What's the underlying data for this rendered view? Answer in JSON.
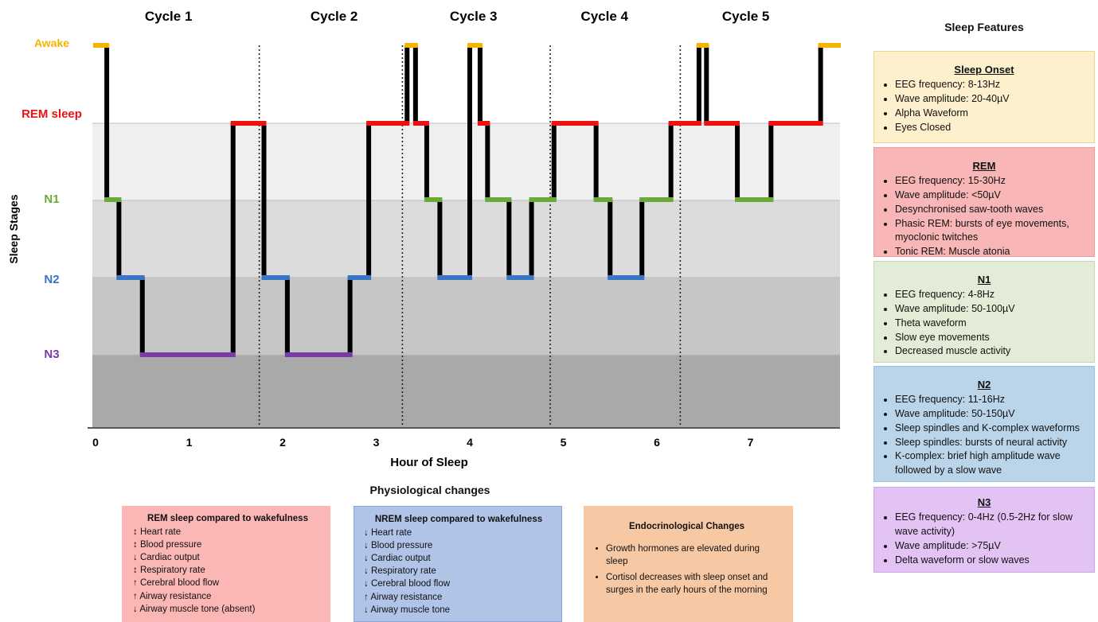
{
  "chart_data": {
    "type": "line",
    "subtype": "hypnogram",
    "xlabel": "Hour of Sleep",
    "ylabel": "Sleep Stages",
    "x_ticks": [
      "0",
      "1",
      "2",
      "3",
      "4",
      "5",
      "6",
      "7"
    ],
    "xlim": [
      0,
      7.8
    ],
    "stages": [
      {
        "name": "Awake",
        "color": "#f6b400"
      },
      {
        "name": "REM sleep",
        "color": "#ee1111"
      },
      {
        "name": "N1",
        "color": "#6aaa3a"
      },
      {
        "name": "N2",
        "color": "#3a74c4"
      },
      {
        "name": "N3",
        "color": "#7a3aa8"
      }
    ],
    "cycles": [
      {
        "label": "Cycle 1",
        "center": 0.78
      },
      {
        "label": "Cycle 2",
        "center": 2.55
      },
      {
        "label": "Cycle 3",
        "center": 4.04
      },
      {
        "label": "Cycle 4",
        "center": 5.44
      },
      {
        "label": "Cycle 5",
        "center": 6.95
      }
    ],
    "cycle_boundaries": [
      1.75,
      3.28,
      4.86,
      6.25
    ],
    "segments": [
      {
        "stage": "Awake",
        "x0": 0.0,
        "x1": 0.12
      },
      {
        "stage": "N1",
        "x0": 0.12,
        "x1": 0.25
      },
      {
        "stage": "N2",
        "x0": 0.25,
        "x1": 0.5
      },
      {
        "stage": "N3",
        "x0": 0.5,
        "x1": 1.47
      },
      {
        "stage": "REM sleep",
        "x0": 1.47,
        "x1": 1.8
      },
      {
        "stage": "N2",
        "x0": 1.8,
        "x1": 2.05
      },
      {
        "stage": "N3",
        "x0": 2.05,
        "x1": 2.72
      },
      {
        "stage": "N2",
        "x0": 2.72,
        "x1": 2.92
      },
      {
        "stage": "REM sleep",
        "x0": 2.92,
        "x1": 3.33
      },
      {
        "stage": "Awake",
        "x0": 3.33,
        "x1": 3.42
      },
      {
        "stage": "REM sleep",
        "x0": 3.42,
        "x1": 3.54
      },
      {
        "stage": "N1",
        "x0": 3.54,
        "x1": 3.68
      },
      {
        "stage": "N2",
        "x0": 3.68,
        "x1": 4.0
      },
      {
        "stage": "Awake",
        "x0": 4.0,
        "x1": 4.11
      },
      {
        "stage": "REM sleep",
        "x0": 4.11,
        "x1": 4.19
      },
      {
        "stage": "N1",
        "x0": 4.19,
        "x1": 4.42
      },
      {
        "stage": "N2",
        "x0": 4.42,
        "x1": 4.66
      },
      {
        "stage": "N1",
        "x0": 4.66,
        "x1": 4.9
      },
      {
        "stage": "REM sleep",
        "x0": 4.9,
        "x1": 5.35
      },
      {
        "stage": "N1",
        "x0": 5.35,
        "x1": 5.5
      },
      {
        "stage": "N2",
        "x0": 5.5,
        "x1": 5.84
      },
      {
        "stage": "N1",
        "x0": 5.84,
        "x1": 6.15
      },
      {
        "stage": "REM sleep",
        "x0": 6.15,
        "x1": 6.45
      },
      {
        "stage": "Awake",
        "x0": 6.45,
        "x1": 6.53
      },
      {
        "stage": "REM sleep",
        "x0": 6.53,
        "x1": 6.86
      },
      {
        "stage": "N1",
        "x0": 6.86,
        "x1": 7.22
      },
      {
        "stage": "REM sleep",
        "x0": 7.22,
        "x1": 7.75
      },
      {
        "stage": "Awake",
        "x0": 7.75,
        "x1": 8.0
      }
    ]
  },
  "features": {
    "title": "Sleep Features",
    "boxes": [
      {
        "title": "Sleep Onset",
        "bg": "#fdf0cc",
        "border": "#f3d58a",
        "items": [
          "EEG frequency: 8-13Hz",
          "Wave amplitude: 20-40µV",
          "Alpha Waveform",
          "Eyes Closed"
        ]
      },
      {
        "title": "REM",
        "bg": "#f8b6b6",
        "border": "#f29a9a",
        "items": [
          "EEG frequency: 15-30Hz",
          "Wave amplitude: <50µV",
          "Desynchronised saw-tooth waves",
          "Phasic REM: bursts of eye movements, myoclonic twitches",
          "Tonic REM: Muscle atonia"
        ]
      },
      {
        "title": "N1",
        "bg": "#e3ecd6",
        "border": "#c8d8b4",
        "items": [
          "EEG frequency: 4-8Hz",
          "Wave amplitude: 50-100µV",
          "Theta waveform",
          "Slow eye movements",
          "Decreased muscle activity"
        ]
      },
      {
        "title": "N2",
        "bg": "#bad4ea",
        "border": "#9fc0de",
        "items": [
          "EEG frequency: 11-16Hz",
          "Wave amplitude: 50-150µV",
          "Sleep spindles and K-complex waveforms",
          "Sleep spindles: bursts of neural activity",
          "K-complex: brief high amplitude wave followed by a slow wave"
        ]
      },
      {
        "title": "N3",
        "bg": "#e3c3f4",
        "border": "#d1a8ec",
        "items": [
          "EEG frequency: 0-4Hz (0.5-2Hz for slow wave activity)",
          "Wave amplitude: >75µV",
          "Delta waveform or slow waves"
        ]
      }
    ]
  },
  "physiology": {
    "title": "Physiological changes",
    "rem": {
      "title": "REM sleep compared to wakefulness",
      "bg": "#fbb6b6",
      "rows": [
        {
          "arrow": "↕",
          "text": "Heart rate"
        },
        {
          "arrow": "↕",
          "text": "Blood pressure"
        },
        {
          "arrow": "↓",
          "text": "Cardiac output"
        },
        {
          "arrow": "↕",
          "text": "Respiratory rate"
        },
        {
          "arrow": "↑",
          "text": "Cerebral blood flow"
        },
        {
          "arrow": "↑",
          "text": "Airway resistance"
        },
        {
          "arrow": "↓",
          "text": "Airway muscle tone (absent)"
        }
      ]
    },
    "nrem": {
      "title": "NREM sleep compared to wakefulness",
      "bg": "#b0c4e8",
      "rows": [
        {
          "arrow": "↓",
          "text": "Heart rate"
        },
        {
          "arrow": "↓",
          "text": "Blood pressure"
        },
        {
          "arrow": "↓",
          "text": "Cardiac output"
        },
        {
          "arrow": "↓",
          "text": "Respiratory rate"
        },
        {
          "arrow": "↓",
          "text": "Cerebral blood flow"
        },
        {
          "arrow": "↑",
          "text": "Airway resistance"
        },
        {
          "arrow": "↓",
          "text": "Airway muscle tone"
        }
      ]
    },
    "endo": {
      "title": "Endocrinological Changes",
      "bg": "#f7c8a4",
      "items": [
        "Growth hormones are elevated during sleep",
        "Cortisol decreases with sleep onset and surges in the early hours of the morning"
      ]
    }
  }
}
